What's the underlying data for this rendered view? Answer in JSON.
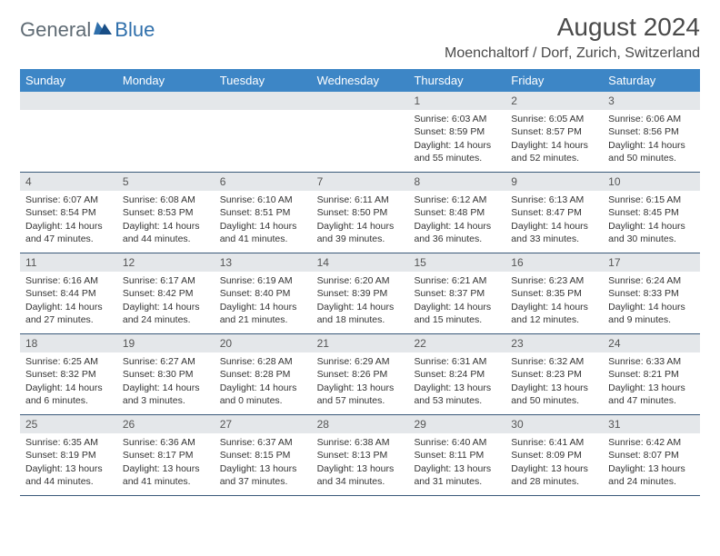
{
  "brand": {
    "part1": "General",
    "part2": "Blue"
  },
  "title": "August 2024",
  "location": "Moenchaltorf / Dorf, Zurich, Switzerland",
  "colors": {
    "header_bg": "#3d86c6",
    "daynum_bg": "#e4e7ea",
    "rule": "#3a5a7a",
    "brand_gray": "#5f6b74",
    "brand_blue": "#2f6fab"
  },
  "weekdays": [
    "Sunday",
    "Monday",
    "Tuesday",
    "Wednesday",
    "Thursday",
    "Friday",
    "Saturday"
  ],
  "weeks": [
    [
      {
        "n": "",
        "sr": "",
        "ss": "",
        "dl": ""
      },
      {
        "n": "",
        "sr": "",
        "ss": "",
        "dl": ""
      },
      {
        "n": "",
        "sr": "",
        "ss": "",
        "dl": ""
      },
      {
        "n": "",
        "sr": "",
        "ss": "",
        "dl": ""
      },
      {
        "n": "1",
        "sr": "Sunrise: 6:03 AM",
        "ss": "Sunset: 8:59 PM",
        "dl": "Daylight: 14 hours and 55 minutes."
      },
      {
        "n": "2",
        "sr": "Sunrise: 6:05 AM",
        "ss": "Sunset: 8:57 PM",
        "dl": "Daylight: 14 hours and 52 minutes."
      },
      {
        "n": "3",
        "sr": "Sunrise: 6:06 AM",
        "ss": "Sunset: 8:56 PM",
        "dl": "Daylight: 14 hours and 50 minutes."
      }
    ],
    [
      {
        "n": "4",
        "sr": "Sunrise: 6:07 AM",
        "ss": "Sunset: 8:54 PM",
        "dl": "Daylight: 14 hours and 47 minutes."
      },
      {
        "n": "5",
        "sr": "Sunrise: 6:08 AM",
        "ss": "Sunset: 8:53 PM",
        "dl": "Daylight: 14 hours and 44 minutes."
      },
      {
        "n": "6",
        "sr": "Sunrise: 6:10 AM",
        "ss": "Sunset: 8:51 PM",
        "dl": "Daylight: 14 hours and 41 minutes."
      },
      {
        "n": "7",
        "sr": "Sunrise: 6:11 AM",
        "ss": "Sunset: 8:50 PM",
        "dl": "Daylight: 14 hours and 39 minutes."
      },
      {
        "n": "8",
        "sr": "Sunrise: 6:12 AM",
        "ss": "Sunset: 8:48 PM",
        "dl": "Daylight: 14 hours and 36 minutes."
      },
      {
        "n": "9",
        "sr": "Sunrise: 6:13 AM",
        "ss": "Sunset: 8:47 PM",
        "dl": "Daylight: 14 hours and 33 minutes."
      },
      {
        "n": "10",
        "sr": "Sunrise: 6:15 AM",
        "ss": "Sunset: 8:45 PM",
        "dl": "Daylight: 14 hours and 30 minutes."
      }
    ],
    [
      {
        "n": "11",
        "sr": "Sunrise: 6:16 AM",
        "ss": "Sunset: 8:44 PM",
        "dl": "Daylight: 14 hours and 27 minutes."
      },
      {
        "n": "12",
        "sr": "Sunrise: 6:17 AM",
        "ss": "Sunset: 8:42 PM",
        "dl": "Daylight: 14 hours and 24 minutes."
      },
      {
        "n": "13",
        "sr": "Sunrise: 6:19 AM",
        "ss": "Sunset: 8:40 PM",
        "dl": "Daylight: 14 hours and 21 minutes."
      },
      {
        "n": "14",
        "sr": "Sunrise: 6:20 AM",
        "ss": "Sunset: 8:39 PM",
        "dl": "Daylight: 14 hours and 18 minutes."
      },
      {
        "n": "15",
        "sr": "Sunrise: 6:21 AM",
        "ss": "Sunset: 8:37 PM",
        "dl": "Daylight: 14 hours and 15 minutes."
      },
      {
        "n": "16",
        "sr": "Sunrise: 6:23 AM",
        "ss": "Sunset: 8:35 PM",
        "dl": "Daylight: 14 hours and 12 minutes."
      },
      {
        "n": "17",
        "sr": "Sunrise: 6:24 AM",
        "ss": "Sunset: 8:33 PM",
        "dl": "Daylight: 14 hours and 9 minutes."
      }
    ],
    [
      {
        "n": "18",
        "sr": "Sunrise: 6:25 AM",
        "ss": "Sunset: 8:32 PM",
        "dl": "Daylight: 14 hours and 6 minutes."
      },
      {
        "n": "19",
        "sr": "Sunrise: 6:27 AM",
        "ss": "Sunset: 8:30 PM",
        "dl": "Daylight: 14 hours and 3 minutes."
      },
      {
        "n": "20",
        "sr": "Sunrise: 6:28 AM",
        "ss": "Sunset: 8:28 PM",
        "dl": "Daylight: 14 hours and 0 minutes."
      },
      {
        "n": "21",
        "sr": "Sunrise: 6:29 AM",
        "ss": "Sunset: 8:26 PM",
        "dl": "Daylight: 13 hours and 57 minutes."
      },
      {
        "n": "22",
        "sr": "Sunrise: 6:31 AM",
        "ss": "Sunset: 8:24 PM",
        "dl": "Daylight: 13 hours and 53 minutes."
      },
      {
        "n": "23",
        "sr": "Sunrise: 6:32 AM",
        "ss": "Sunset: 8:23 PM",
        "dl": "Daylight: 13 hours and 50 minutes."
      },
      {
        "n": "24",
        "sr": "Sunrise: 6:33 AM",
        "ss": "Sunset: 8:21 PM",
        "dl": "Daylight: 13 hours and 47 minutes."
      }
    ],
    [
      {
        "n": "25",
        "sr": "Sunrise: 6:35 AM",
        "ss": "Sunset: 8:19 PM",
        "dl": "Daylight: 13 hours and 44 minutes."
      },
      {
        "n": "26",
        "sr": "Sunrise: 6:36 AM",
        "ss": "Sunset: 8:17 PM",
        "dl": "Daylight: 13 hours and 41 minutes."
      },
      {
        "n": "27",
        "sr": "Sunrise: 6:37 AM",
        "ss": "Sunset: 8:15 PM",
        "dl": "Daylight: 13 hours and 37 minutes."
      },
      {
        "n": "28",
        "sr": "Sunrise: 6:38 AM",
        "ss": "Sunset: 8:13 PM",
        "dl": "Daylight: 13 hours and 34 minutes."
      },
      {
        "n": "29",
        "sr": "Sunrise: 6:40 AM",
        "ss": "Sunset: 8:11 PM",
        "dl": "Daylight: 13 hours and 31 minutes."
      },
      {
        "n": "30",
        "sr": "Sunrise: 6:41 AM",
        "ss": "Sunset: 8:09 PM",
        "dl": "Daylight: 13 hours and 28 minutes."
      },
      {
        "n": "31",
        "sr": "Sunrise: 6:42 AM",
        "ss": "Sunset: 8:07 PM",
        "dl": "Daylight: 13 hours and 24 minutes."
      }
    ]
  ]
}
